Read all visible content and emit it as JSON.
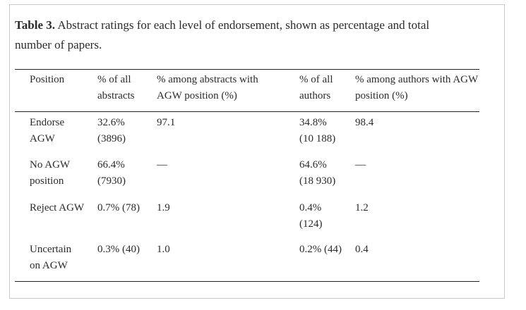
{
  "table": {
    "caption_label": "Table 3.",
    "caption_text": "Abstract ratings for each level of endorsement, shown as percentage and total number of papers.",
    "headers": {
      "position": "Position",
      "pct_all_abstracts": [
        "% of all",
        "abstracts"
      ],
      "pct_among_abstracts": [
        "% among abstracts with",
        "AGW position (%)"
      ],
      "pct_all_authors": [
        "% of all",
        "authors"
      ],
      "pct_among_authors": [
        "% among authors with AGW",
        "position (%)"
      ]
    },
    "rows": [
      {
        "position": [
          "Endorse",
          "AGW"
        ],
        "pct_all_abstracts": [
          "32.6%",
          "(3896)"
        ],
        "pct_among_abstracts": [
          "97.1"
        ],
        "pct_all_authors": [
          "34.8%",
          "(10 188)"
        ],
        "pct_among_authors": [
          "98.4"
        ]
      },
      {
        "position": [
          "No AGW",
          "position"
        ],
        "pct_all_abstracts": [
          "66.4%",
          "(7930)"
        ],
        "pct_among_abstracts": [
          "—"
        ],
        "pct_all_authors": [
          "64.6%",
          "(18 930)"
        ],
        "pct_among_authors": [
          "—"
        ]
      },
      {
        "position": [
          "Reject AGW"
        ],
        "pct_all_abstracts": [
          "0.7% (78)"
        ],
        "pct_among_abstracts": [
          "1.9"
        ],
        "pct_all_authors": [
          "0.4%",
          "(124)"
        ],
        "pct_among_authors": [
          "1.2"
        ]
      },
      {
        "position": [
          "Uncertain",
          "on AGW"
        ],
        "pct_all_abstracts": [
          "0.3% (40)"
        ],
        "pct_among_abstracts": [
          "1.0"
        ],
        "pct_all_authors": [
          "0.2% (44)"
        ],
        "pct_among_authors": [
          "0.4"
        ]
      }
    ]
  }
}
